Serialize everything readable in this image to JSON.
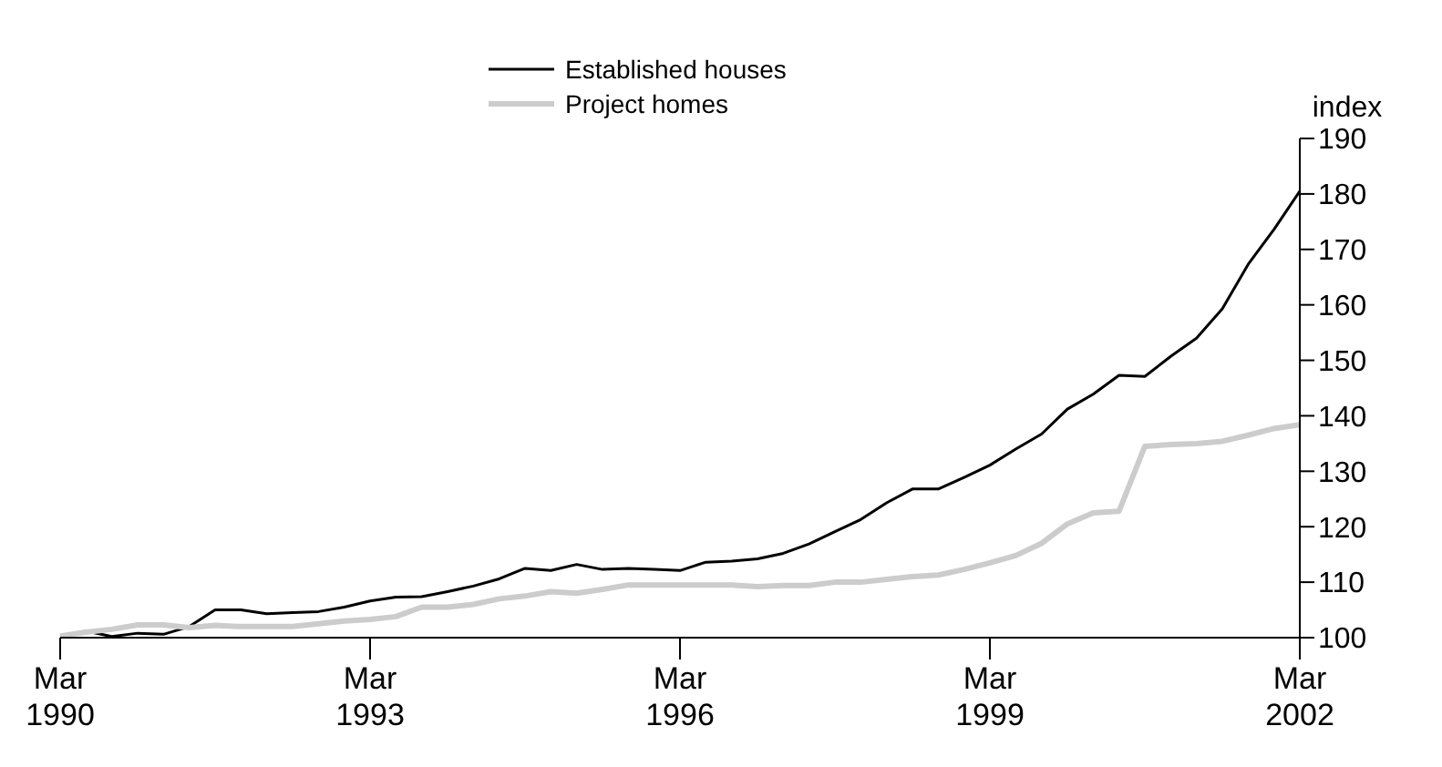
{
  "chart_data": {
    "type": "line",
    "ylabel": "index",
    "x": [
      "1990-03",
      "1990-06",
      "1990-09",
      "1990-12",
      "1991-03",
      "1991-06",
      "1991-09",
      "1991-12",
      "1992-03",
      "1992-06",
      "1992-09",
      "1992-12",
      "1993-03",
      "1993-06",
      "1993-09",
      "1993-12",
      "1994-03",
      "1994-06",
      "1994-09",
      "1994-12",
      "1995-03",
      "1995-06",
      "1995-09",
      "1995-12",
      "1996-03",
      "1996-06",
      "1996-09",
      "1996-12",
      "1997-03",
      "1997-06",
      "1997-09",
      "1997-12",
      "1998-03",
      "1998-06",
      "1998-09",
      "1998-12",
      "1999-03",
      "1999-06",
      "1999-09",
      "1999-12",
      "2000-03",
      "2000-06",
      "2000-09",
      "2000-12",
      "2001-03",
      "2001-06",
      "2001-09",
      "2001-12",
      "2002-03"
    ],
    "series": [
      {
        "name": "Established houses",
        "color": "#000000",
        "values": [
          100,
          101.2,
          100.2,
          100.8,
          100.6,
          102,
          105,
          105,
          104.3,
          104.5,
          104.7,
          105.5,
          106.6,
          107.3,
          107.4,
          108.3,
          109.3,
          110.6,
          112.5,
          112.1,
          113.2,
          112.3,
          112.5,
          112.3,
          112.1,
          113.6,
          113.8,
          114.2,
          115.2,
          116.9,
          119.1,
          121.3,
          124.3,
          126.8,
          126.8,
          128.9,
          131.1,
          134,
          136.7,
          141.2,
          143.9,
          147.3,
          147.1,
          150.7,
          154,
          159.3,
          167.3,
          173.6,
          180.5
        ]
      },
      {
        "name": "Project homes",
        "color": "#cccccc",
        "values": [
          100.3,
          101,
          101.5,
          102.3,
          102.3,
          101.8,
          102.2,
          102,
          102,
          102,
          102.5,
          103,
          103.3,
          103.8,
          105.5,
          105.5,
          106,
          107,
          107.5,
          108.3,
          108,
          108.7,
          109.5,
          109.5,
          109.5,
          109.5,
          109.5,
          109.2,
          109.4,
          109.4,
          110,
          110,
          110.5,
          111,
          111.3,
          112.3,
          113.5,
          114.8,
          117,
          120.5,
          122.5,
          122.8,
          134.5,
          134.8,
          135,
          135.4,
          136.5,
          137.7,
          138.4
        ]
      }
    ],
    "xlim": [
      "1990-03",
      "2002-03"
    ],
    "xticks": [
      {
        "value": "1990-03",
        "label": "Mar 1990"
      },
      {
        "value": "1993-03",
        "label": "Mar 1993"
      },
      {
        "value": "1996-03",
        "label": "Mar 1996"
      },
      {
        "value": "1999-03",
        "label": "Mar 1999"
      },
      {
        "value": "2002-03",
        "label": "Mar 2002"
      }
    ],
    "ylim": [
      100,
      190
    ],
    "yticks": [
      100,
      110,
      120,
      130,
      140,
      150,
      160,
      170,
      180,
      190
    ],
    "grid": false,
    "legend": "top",
    "marker": "none",
    "line_style": "solid"
  }
}
